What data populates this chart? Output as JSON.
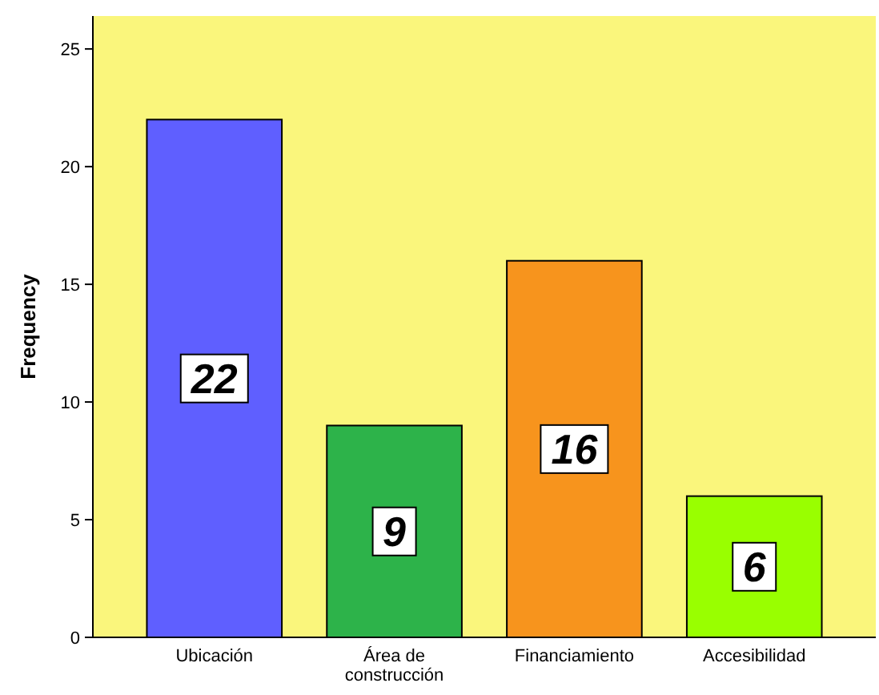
{
  "chart_data": {
    "type": "bar",
    "ylabel": "Frequency",
    "categories": [
      "Ubicación",
      "Área de construcción",
      "Financiamiento",
      "Accesibilidad"
    ],
    "values": [
      22,
      9,
      16,
      6
    ],
    "colors": [
      "#5f5fff",
      "#2db34a",
      "#f7941d",
      "#99ff00"
    ],
    "ylim": [
      0,
      26.4
    ],
    "yticks": [
      0,
      5,
      10,
      15,
      20,
      25
    ],
    "grid": false,
    "data_labels": true
  }
}
